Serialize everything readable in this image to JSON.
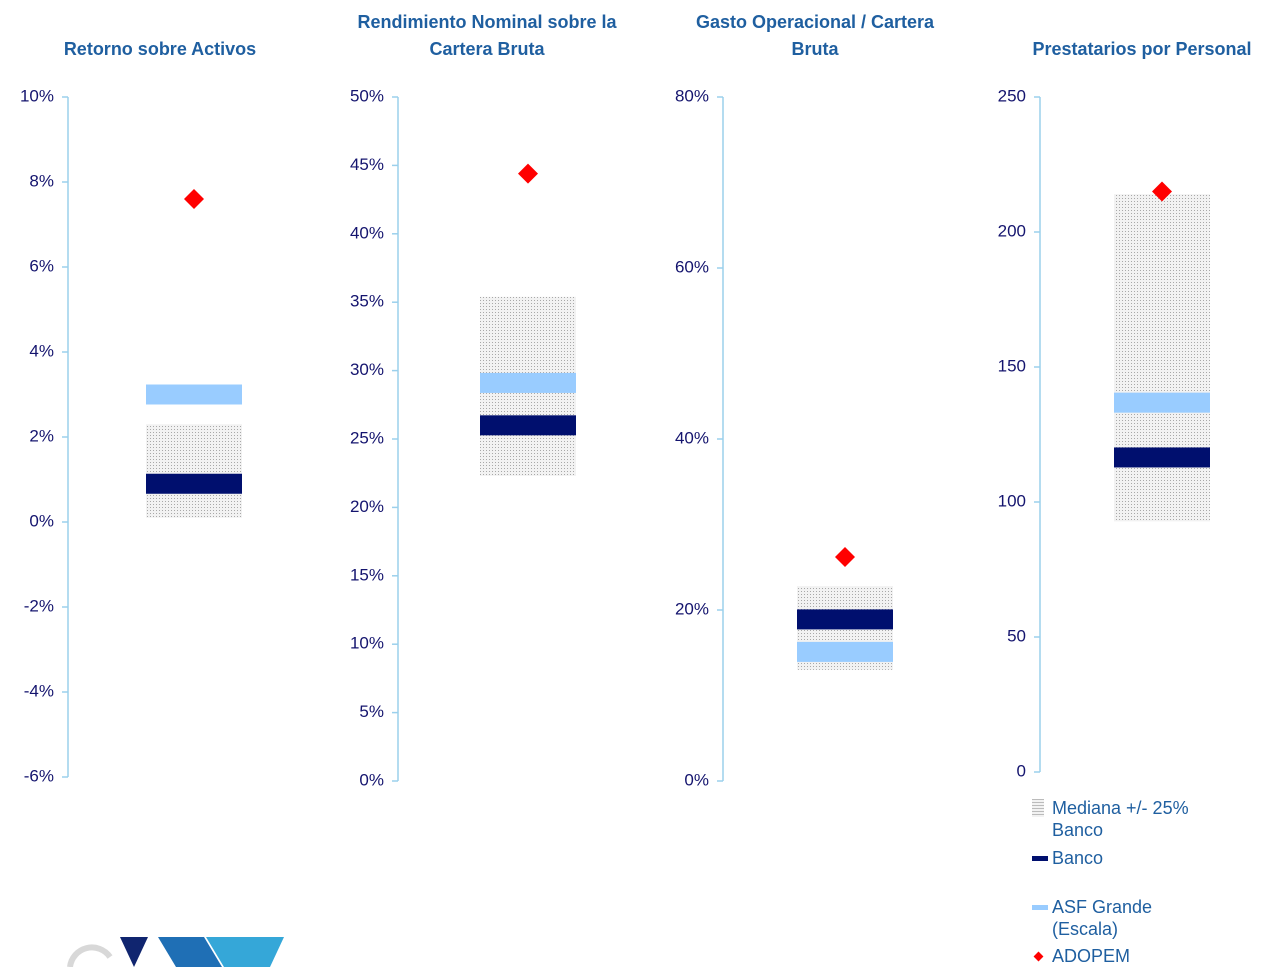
{
  "legend": [
    {
      "name": "Mediana +/- 25% Banco",
      "color": "#cfcfcf"
    },
    {
      "name": "Banco",
      "color": "#000f6e"
    },
    {
      "name": "ASF Grande (Escala)",
      "color": "#99ccff"
    },
    {
      "name": "ADOPEM",
      "color": "#ff0000"
    }
  ],
  "chart_data": [
    {
      "type": "range",
      "title": [
        "Retorno sobre Activos"
      ],
      "ylim": [
        -6,
        10
      ],
      "yticks": [
        {
          "value": -6,
          "label": "-6%"
        },
        {
          "value": -4,
          "label": "-4%"
        },
        {
          "value": -2,
          "label": "-2%"
        },
        {
          "value": 0,
          "label": "0%"
        },
        {
          "value": 2,
          "label": "2%"
        },
        {
          "value": 4,
          "label": "4%"
        },
        {
          "value": 6,
          "label": "6%"
        },
        {
          "value": 8,
          "label": "8%"
        },
        {
          "value": 10,
          "label": "10%"
        }
      ],
      "range": [
        0.1,
        2.3
      ],
      "values": [
        0.9,
        3.0,
        7.6
      ]
    },
    {
      "type": "range",
      "title": [
        "Rendimiento Nominal sobre la",
        "Cartera Bruta"
      ],
      "ylim": [
        0,
        50
      ],
      "yticks": [
        {
          "value": 0,
          "label": "0%"
        },
        {
          "value": 5,
          "label": "5%"
        },
        {
          "value": 10,
          "label": "10%"
        },
        {
          "value": 15,
          "label": "15%"
        },
        {
          "value": 20,
          "label": "20%"
        },
        {
          "value": 25,
          "label": "25%"
        },
        {
          "value": 30,
          "label": "30%"
        },
        {
          "value": 35,
          "label": "35%"
        },
        {
          "value": 40,
          "label": "40%"
        },
        {
          "value": 45,
          "label": "45%"
        },
        {
          "value": 50,
          "label": "50%"
        }
      ],
      "range": [
        22.3,
        35.4
      ],
      "values": [
        26.0,
        29.1,
        44.4
      ]
    },
    {
      "type": "range",
      "title": [
        "Gasto Operacional / Cartera",
        "Bruta"
      ],
      "ylim": [
        0,
        80
      ],
      "yticks": [
        {
          "value": 0,
          "label": "0%"
        },
        {
          "value": 20,
          "label": "20%"
        },
        {
          "value": 40,
          "label": "40%"
        },
        {
          "value": 60,
          "label": "60%"
        },
        {
          "value": 80,
          "label": "80%"
        }
      ],
      "range": [
        13.0,
        22.8
      ],
      "values": [
        18.9,
        15.1,
        26.2
      ]
    },
    {
      "type": "range",
      "title": [
        "Prestatarios por Personal"
      ],
      "ylim": [
        0,
        250
      ],
      "yticks": [
        0,
        50,
        100,
        150,
        200,
        250
      ],
      "range": [
        92.8,
        214
      ],
      "values": [
        116.5,
        136.8,
        215
      ]
    }
  ]
}
